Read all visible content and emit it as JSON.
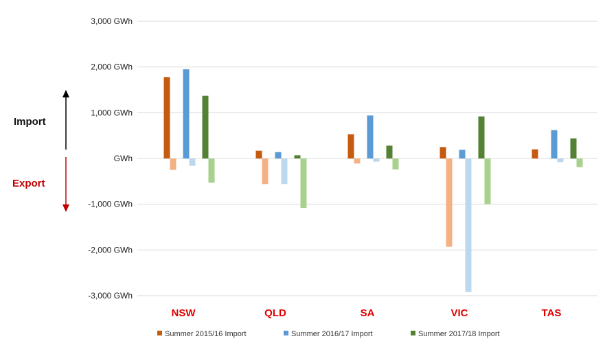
{
  "chart_data": {
    "type": "bar",
    "categories": [
      "NSW",
      "QLD",
      "SA",
      "VIC",
      "TAS"
    ],
    "y_ticks": [
      "3,000 GWh",
      "2,000 GWh",
      "1,000 GWh",
      "GWh",
      "-1,000 GWh",
      "-2,000 GWh",
      "-3,000 GWh"
    ],
    "y_tick_values": [
      3000,
      2000,
      1000,
      0,
      -1000,
      -2000,
      -3000
    ],
    "ylim": [
      -3000,
      3000
    ],
    "grid": true,
    "legend_position": "bottom",
    "import_label": "Import",
    "export_label": "Export",
    "series": [
      {
        "name": "Summer 2015/16 Import",
        "kind": "import",
        "color": "#c55a11",
        "values": [
          1780,
          170,
          530,
          250,
          200
        ]
      },
      {
        "name": "",
        "kind": "export",
        "color": "#f4b183",
        "values": [
          -250,
          -560,
          -110,
          -1930,
          0
        ]
      },
      {
        "name": "Summer 2016/17 Import",
        "kind": "import",
        "color": "#5b9bd5",
        "values": [
          1950,
          140,
          940,
          190,
          620
        ]
      },
      {
        "name": "",
        "kind": "export",
        "color": "#bdd7ee",
        "values": [
          -160,
          -560,
          -70,
          -2920,
          -80
        ]
      },
      {
        "name": "Summer 2017/18 Import",
        "kind": "import",
        "color": "#548235",
        "values": [
          1370,
          70,
          280,
          920,
          440
        ]
      },
      {
        "name": "",
        "kind": "export",
        "color": "#a9d18e",
        "values": [
          -530,
          -1080,
          -240,
          -1000,
          -190
        ]
      }
    ]
  },
  "colors": {
    "category_label": "#e00000",
    "import_arrow": "#000000",
    "export_arrow": "#c00000",
    "gridline": "#d9d9d9"
  }
}
